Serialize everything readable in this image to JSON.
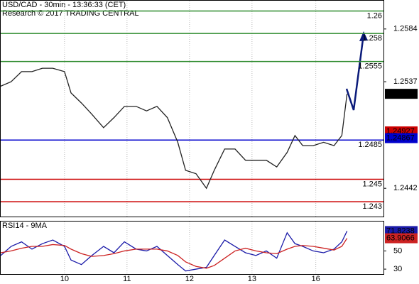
{
  "chart_data": [
    {
      "type": "line",
      "title": "USD/CAD - 30min - 13:36:33 (CET)",
      "subtitle": "Research © 2017 TRADING CENTRAL",
      "x": [
        0,
        4,
        8,
        12,
        16,
        20,
        24.5,
        27,
        31,
        35,
        39.5,
        43.5,
        47.5,
        52,
        56,
        60,
        64,
        68,
        71,
        75,
        79,
        82,
        86,
        90,
        94,
        98,
        102,
        106,
        110,
        113,
        116,
        120,
        124,
        128,
        131,
        133
      ],
      "series": [
        {
          "color": "#222222",
          "values": [
            1.2533,
            1.2537,
            1.2546,
            1.2546,
            1.2549,
            1.2549,
            1.2546,
            1.2527,
            1.2518,
            1.2508,
            1.2496,
            1.2505,
            1.2515,
            1.2515,
            1.2511,
            1.2515,
            1.2505,
            1.2483,
            1.2458,
            1.2455,
            1.2442,
            1.2458,
            1.2477,
            1.2477,
            1.2467,
            1.2467,
            1.2467,
            1.2461,
            1.2474,
            1.2489,
            1.248,
            1.248,
            1.2483,
            1.248,
            1.2489,
            1.25262
          ]
        }
      ],
      "xlim": [
        0,
        147
      ],
      "ylim": [
        1.24168,
        1.26092
      ],
      "xticks": [
        {
          "value": 24.5,
          "label": "10"
        },
        {
          "value": 48.5,
          "label": "11"
        },
        {
          "value": 72.5,
          "label": "12"
        },
        {
          "value": 96.5,
          "label": "13"
        },
        {
          "value": 121,
          "label": "16"
        }
      ],
      "yticks": [
        1.2584,
        1.2537,
        1.2442
      ],
      "levels": [
        {
          "value": 1.26,
          "color": "#2e8b2e"
        },
        {
          "value": 1.258,
          "color": "#2e8b2e"
        },
        {
          "value": 1.2555,
          "color": "#2e8b2e"
        },
        {
          "value": 1.2485,
          "color": "#0000cc"
        },
        {
          "value": 1.245,
          "color": "#cc0000"
        },
        {
          "value": 1.243,
          "color": "#cc0000"
        }
      ],
      "markers": [
        {
          "value": 1.25262,
          "color": "#000000"
        },
        {
          "value": 1.24927,
          "color": "#cc0000"
        },
        {
          "value": 1.24867,
          "color": "#0000cc"
        }
      ],
      "grid": true
    },
    {
      "type": "line",
      "title": "RSI14 - 9MA",
      "x": [
        0,
        4,
        8,
        12,
        16,
        20,
        24.5,
        27,
        31,
        35,
        39.5,
        43.5,
        47.5,
        52,
        56,
        60,
        64,
        68,
        71,
        75,
        79,
        82,
        86,
        90,
        94,
        98,
        102,
        106,
        110,
        113,
        116,
        120,
        124,
        128,
        131,
        133
      ],
      "series": [
        {
          "color": "#1a1aa8",
          "values": [
            45,
            55,
            60,
            52,
            58,
            62,
            55,
            40,
            35,
            45,
            55,
            48,
            60,
            52,
            50,
            55,
            45,
            35,
            28,
            30,
            32,
            45,
            62,
            55,
            48,
            45,
            50,
            42,
            70,
            58,
            55,
            50,
            48,
            52,
            60,
            71.8238
          ]
        },
        {
          "color": "#cc2222",
          "values": [
            48,
            50,
            53,
            55,
            55,
            57,
            56,
            52,
            47,
            44,
            45,
            47,
            50,
            52,
            52,
            52,
            50,
            45,
            38,
            33,
            31,
            34,
            42,
            50,
            53,
            50,
            48,
            47,
            52,
            55,
            56,
            55,
            53,
            51,
            55,
            63.9066
          ]
        }
      ],
      "xlim": [
        0,
        147
      ],
      "ylim": [
        24.6,
        82.3
      ],
      "yticks": [
        30,
        50
      ],
      "markers": [
        {
          "value": 71.8238,
          "color": "#1a1aa8"
        },
        {
          "value": 63.9066,
          "color": "#cc2222"
        }
      ]
    }
  ]
}
